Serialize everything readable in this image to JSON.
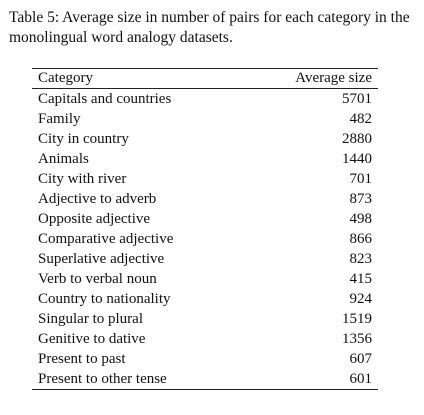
{
  "caption": "Table 5: Average size in number of pairs for each category in the monolingual word analogy datasets.",
  "table": {
    "headers": [
      "Category",
      "Average size"
    ],
    "rows": [
      [
        "Capitals and countries",
        "5701"
      ],
      [
        "Family",
        "482"
      ],
      [
        "City in country",
        "2880"
      ],
      [
        "Animals",
        "1440"
      ],
      [
        "City with river",
        "701"
      ],
      [
        "Adjective to adverb",
        "873"
      ],
      [
        "Opposite adjective",
        "498"
      ],
      [
        "Comparative adjective",
        "866"
      ],
      [
        "Superlative adjective",
        "823"
      ],
      [
        "Verb to verbal noun",
        "415"
      ],
      [
        "Country to nationality",
        "924"
      ],
      [
        "Singular to plural",
        "1519"
      ],
      [
        "Genitive to dative",
        "1356"
      ],
      [
        "Present to past",
        "607"
      ],
      [
        "Present to other tense",
        "601"
      ]
    ]
  }
}
